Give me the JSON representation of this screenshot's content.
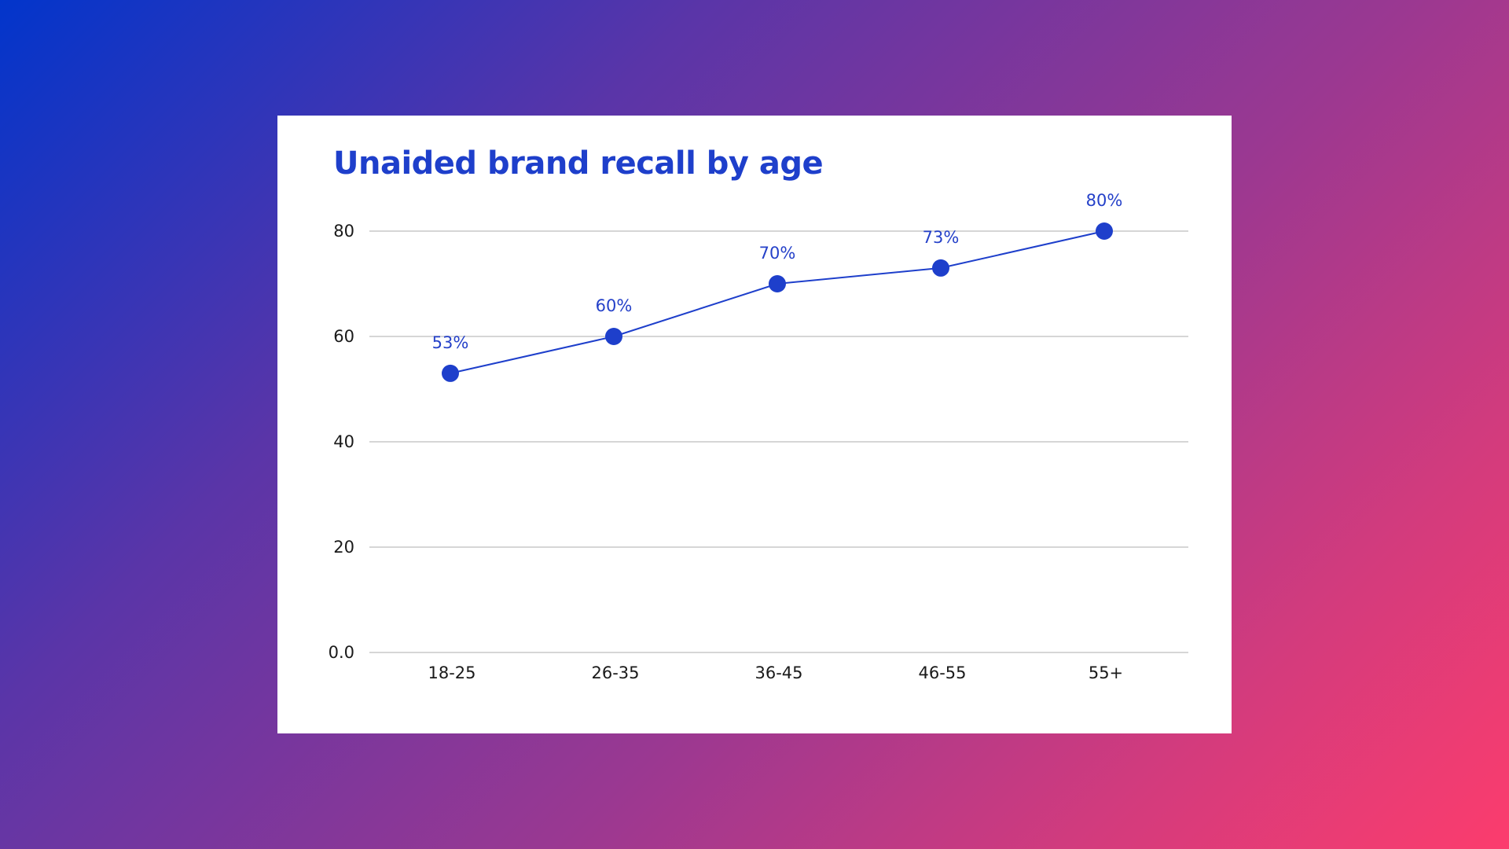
{
  "chart_data": {
    "type": "line",
    "title": "Unaided brand recall by age",
    "categories": [
      "18-25",
      "26-35",
      "36-45",
      "46-55",
      "55+"
    ],
    "series": [
      {
        "values": [
          53,
          60,
          70,
          73,
          80
        ]
      }
    ],
    "data_labels": [
      "53%",
      "60%",
      "70%",
      "73%",
      "80%"
    ],
    "y_ticks": [
      0,
      20,
      40,
      60,
      80
    ],
    "y_tick_labels": [
      "0.0",
      "20",
      "40",
      "60",
      "80"
    ],
    "ylim": [
      0,
      80
    ],
    "grid": true,
    "legend": "none",
    "colors": {
      "series": "#1e3fcb",
      "title": "#1e3fcb",
      "data_label": "#2541c9",
      "grid": "#d6d6d6"
    }
  }
}
